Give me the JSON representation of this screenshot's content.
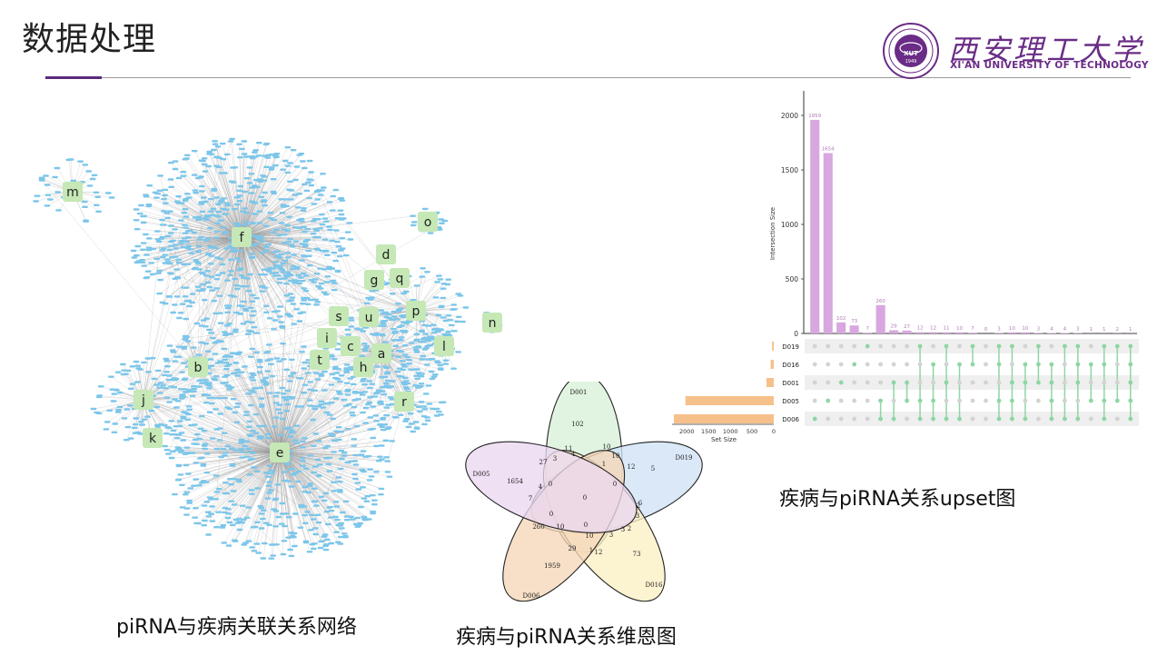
{
  "slide": {
    "title": "数据处理",
    "logo": {
      "name_cn": "西安理工大学",
      "name_en": "XI'AN UNIVERSITY OF TECHNOLOGY",
      "seal_text": "XUT",
      "seal_year": "1949"
    },
    "colors": {
      "accent": "#5b2a7e",
      "node": "#7cc6ea",
      "label_bg": "#c5e8b6",
      "venn_D001": "#d8efd9",
      "venn_D019": "#cfe1f5",
      "venn_D016": "#fbefc4",
      "venn_D006": "#f6d7b8",
      "venn_D005": "#ead7f0",
      "upset_bar": "#d9a7e0",
      "set_bar": "#f6c08a",
      "dot_on": "#8fd6a4"
    }
  },
  "network": {
    "caption": "piRNA与疾病关联关系网络",
    "nodes": [
      "m",
      "f",
      "o",
      "d",
      "g",
      "q",
      "p",
      "s",
      "u",
      "n",
      "i",
      "c",
      "a",
      "l",
      "t",
      "h",
      "b",
      "j",
      "r",
      "k",
      "e"
    ]
  },
  "venn": {
    "caption": "疾病与piRNA关系维恩图",
    "sets": [
      "D001",
      "D019",
      "D016",
      "D006",
      "D005"
    ],
    "regions": [
      "102",
      "5",
      "73",
      "1959",
      "1654",
      "11",
      "3",
      "10",
      "12",
      "27",
      "4",
      "1",
      "10",
      "2",
      "3",
      "7",
      "6",
      "0",
      "0",
      "4",
      "3",
      "2",
      "10",
      "260",
      "10",
      "0",
      "3",
      "1",
      "12",
      "29",
      "0",
      "0"
    ]
  },
  "chart_data": {
    "type": "bar",
    "title": "",
    "ylabel": "Intersection Size",
    "xlabel": "Set Size",
    "ylim": [
      0,
      2000
    ],
    "yticks": [
      "0",
      "500",
      "1000",
      "1500",
      "2000"
    ],
    "intersection_sizes": [
      1959,
      1654,
      102,
      73,
      7,
      260,
      29,
      27,
      12,
      12,
      11,
      10,
      7,
      0,
      3,
      10,
      10,
      3,
      4,
      4,
      3,
      1,
      1,
      2,
      1
    ],
    "bar_labels": [
      "1959",
      "1654",
      "102",
      "73",
      "7",
      "260",
      "29",
      "27",
      "12",
      "12",
      "11",
      "10",
      "7",
      "0",
      "3",
      "10",
      "10",
      "3",
      "4",
      "4",
      "3",
      "1",
      "1",
      "2",
      "1"
    ],
    "sets": [
      "D019",
      "D016",
      "D001",
      "D005",
      "D006"
    ],
    "set_sizes": [
      40,
      72,
      170,
      2035,
      2300
    ],
    "set_ticks": [
      "2000",
      "1500",
      "1000",
      "500",
      "0"
    ],
    "caption": "疾病与piRNA关系upset图"
  }
}
